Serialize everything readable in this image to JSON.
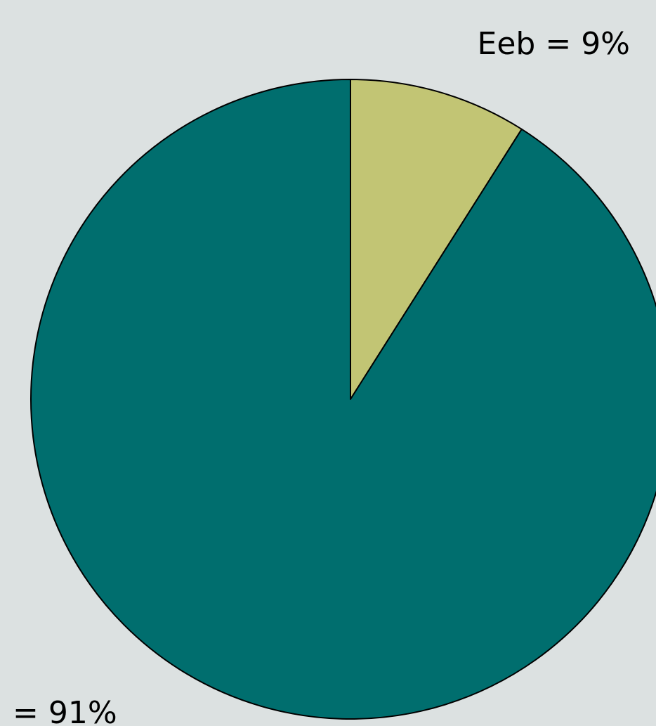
{
  "chart_data": {
    "type": "pie",
    "slices": [
      {
        "label": "Eeb = 9%",
        "value": 9,
        "color": "#c2c574"
      },
      {
        "label": "= 91%",
        "value": 91,
        "color": "#006e6e"
      }
    ]
  },
  "colors": {
    "background": "#dce1e1",
    "outline": "#000000"
  }
}
